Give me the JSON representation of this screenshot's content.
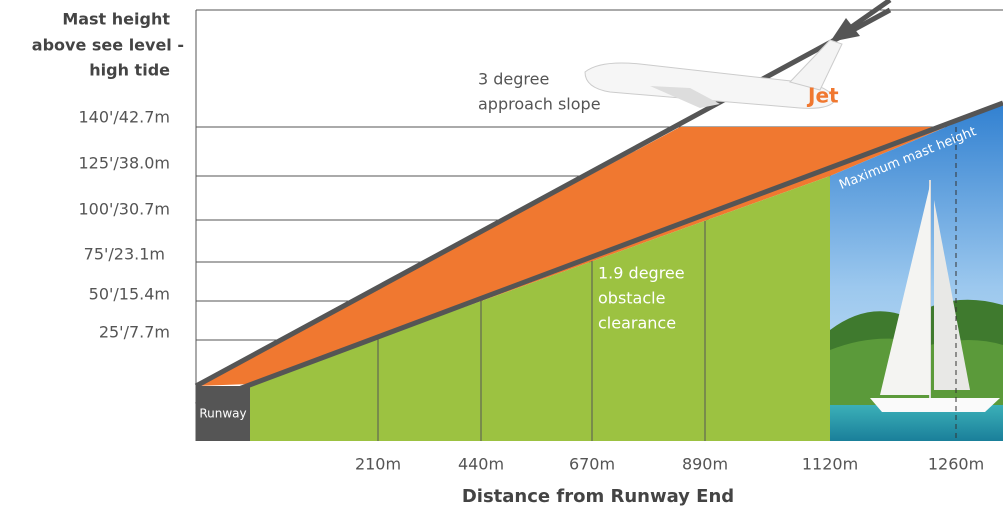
{
  "y_axis": {
    "title": [
      "Mast height",
      "above see level -",
      "high tide"
    ],
    "labels": [
      "140'/42.7m",
      "125'/38.0m",
      "100'/30.7m",
      "75'/23.1m",
      "50'/15.4m",
      "25'/7.7m"
    ]
  },
  "x_axis": {
    "title": "Distance from Runway End",
    "labels": [
      "210m",
      "440m",
      "670m",
      "890m",
      "1120m",
      "1260m"
    ]
  },
  "annotations": {
    "approach": [
      "3 degree",
      "approach slope"
    ],
    "clearance": [
      "1.9 degree",
      "obstacle",
      "clearance"
    ],
    "mast": "Maximum mast height",
    "runway": "Runway",
    "logo": "Jet"
  }
}
